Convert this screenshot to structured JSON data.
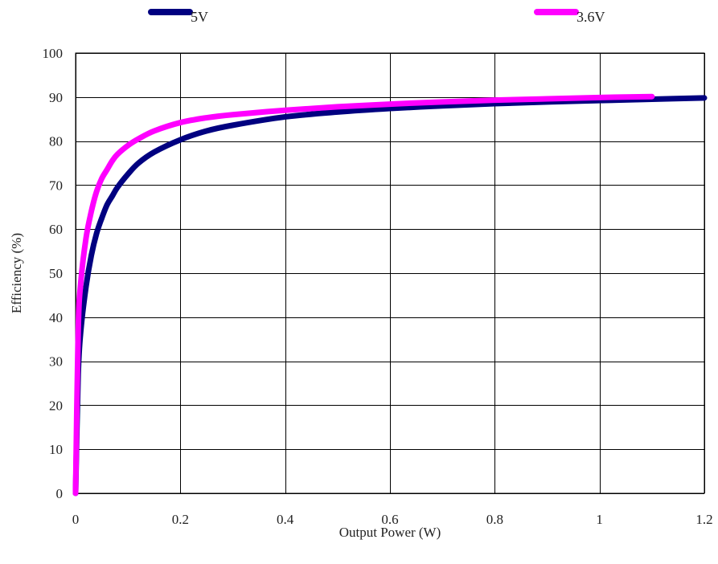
{
  "chart_data": {
    "type": "line",
    "title": "",
    "xlabel": "Output Power (W)",
    "ylabel": "Efficiency (%)",
    "xlim": [
      0,
      1.2
    ],
    "ylim": [
      0,
      100
    ],
    "xticks": [
      0,
      0.2,
      0.4,
      0.6,
      0.8,
      1,
      1.2
    ],
    "yticks": [
      0,
      10,
      20,
      30,
      40,
      50,
      60,
      70,
      80,
      90,
      100
    ],
    "grid": true,
    "legend_position": "top",
    "series": [
      {
        "name": "5V",
        "color": "#000080",
        "x": [
          0,
          0.005,
          0.01,
          0.02,
          0.03,
          0.04,
          0.05,
          0.06,
          0.07,
          0.08,
          0.1,
          0.12,
          0.15,
          0.2,
          0.25,
          0.3,
          0.4,
          0.5,
          0.6,
          0.7,
          0.8,
          0.9,
          1.0,
          1.1,
          1.2
        ],
        "y": [
          0,
          27,
          37,
          47,
          54,
          59,
          62.5,
          65.5,
          67.5,
          69.5,
          72.5,
          75,
          77.5,
          80.3,
          82.3,
          83.6,
          85.5,
          86.6,
          87.4,
          88.0,
          88.5,
          88.9,
          89.2,
          89.5,
          89.8
        ]
      },
      {
        "name": "3.6V",
        "color": "#FF00FF",
        "x": [
          0,
          0.005,
          0.01,
          0.02,
          0.03,
          0.04,
          0.05,
          0.06,
          0.07,
          0.08,
          0.1,
          0.12,
          0.15,
          0.2,
          0.25,
          0.3,
          0.4,
          0.5,
          0.6,
          0.7,
          0.8,
          0.9,
          1.0,
          1.1
        ],
        "y": [
          0,
          37,
          48,
          58,
          64,
          68.5,
          71.5,
          73.5,
          75.5,
          77,
          79,
          80.5,
          82.3,
          84.2,
          85.3,
          86,
          87,
          87.8,
          88.4,
          88.9,
          89.3,
          89.6,
          89.9,
          90.1
        ]
      }
    ]
  }
}
